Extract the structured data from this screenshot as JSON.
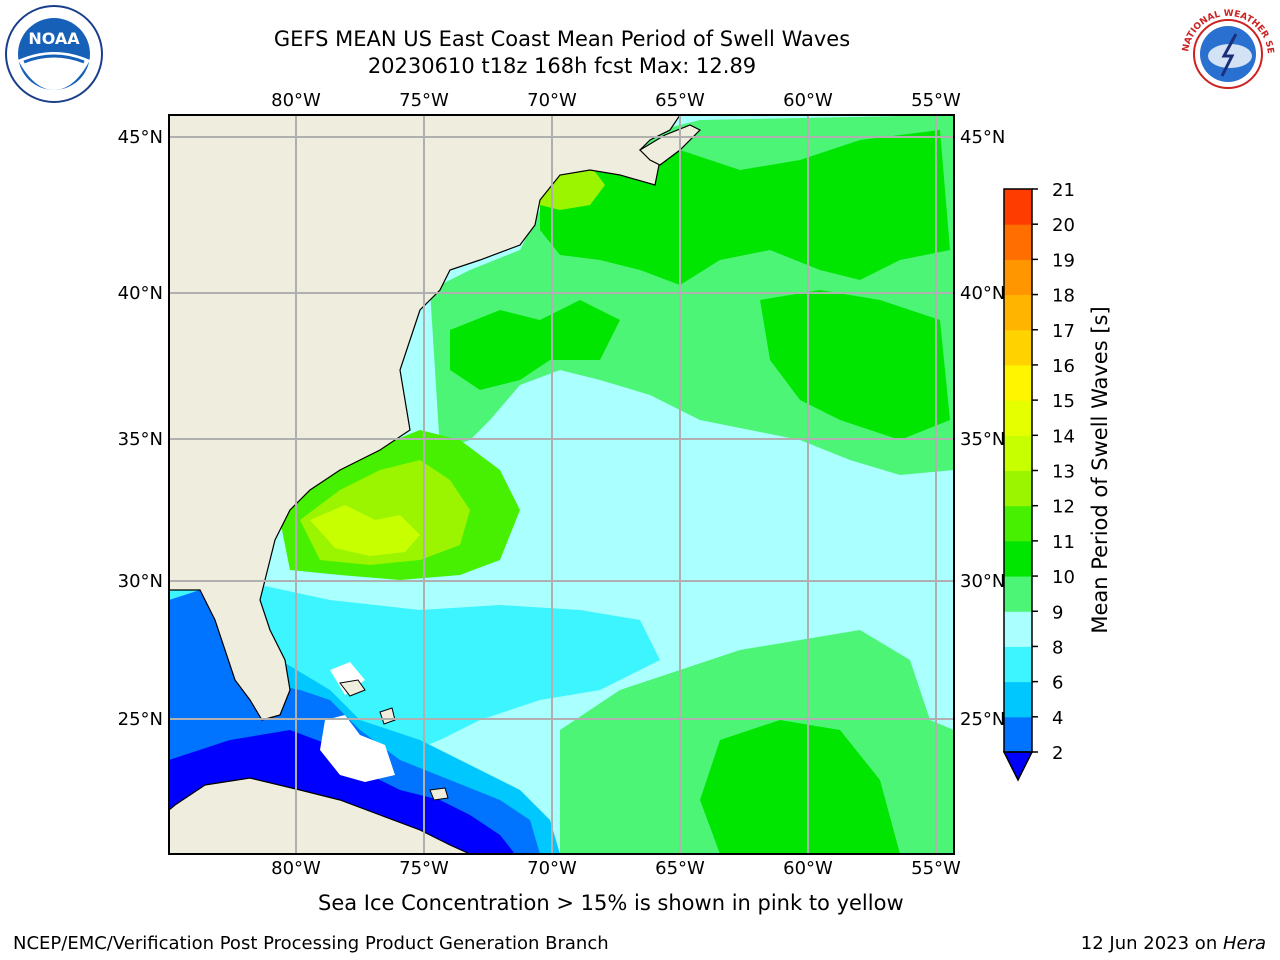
{
  "header": {
    "title_line1": "GEFS MEAN US East Coast Mean Period of Swell Waves",
    "title_line2": "20230610 t18z 168h fcst   Max: 12.89"
  },
  "logos": {
    "left": {
      "text": "NOAA",
      "icon": "noaa-logo-icon"
    },
    "right": {
      "text": "NATIONAL WEATHER SERVICE",
      "icon": "nws-logo-icon"
    }
  },
  "map": {
    "lon_labels": [
      "80°W",
      "75°W",
      "70°W",
      "65°W",
      "60°W",
      "55°W"
    ],
    "lat_labels": [
      "45°N",
      "40°N",
      "35°N",
      "30°N",
      "25°N"
    ],
    "colors": {
      "land": "#efedde",
      "ocean_low": "#aaffff",
      "grid": "#b0b0b0"
    }
  },
  "colorbar": {
    "label": "Mean Period of Swell Waves [s]",
    "ticks": [
      "2",
      "4",
      "6",
      "8",
      "9",
      "10",
      "11",
      "12",
      "13",
      "14",
      "15",
      "16",
      "17",
      "18",
      "19",
      "20",
      "21"
    ],
    "colors": [
      "#0073ff",
      "#00c8ff",
      "#3cf5ff",
      "#aaffff",
      "#4df577",
      "#00e600",
      "#46f000",
      "#9bf500",
      "#c8ff00",
      "#e6ff00",
      "#fff500",
      "#ffd200",
      "#ffb400",
      "#ff9600",
      "#ff6e00",
      "#ff3c00"
    ],
    "extend_color": "#0000ff"
  },
  "footer": {
    "subtitle": "Sea Ice Concentration > 15% is shown in pink to yellow",
    "left": "NCEP/EMC/Verification Post Processing Product Generation Branch",
    "right_date": "12 Jun 2023 on ",
    "right_host": "Hera"
  }
}
